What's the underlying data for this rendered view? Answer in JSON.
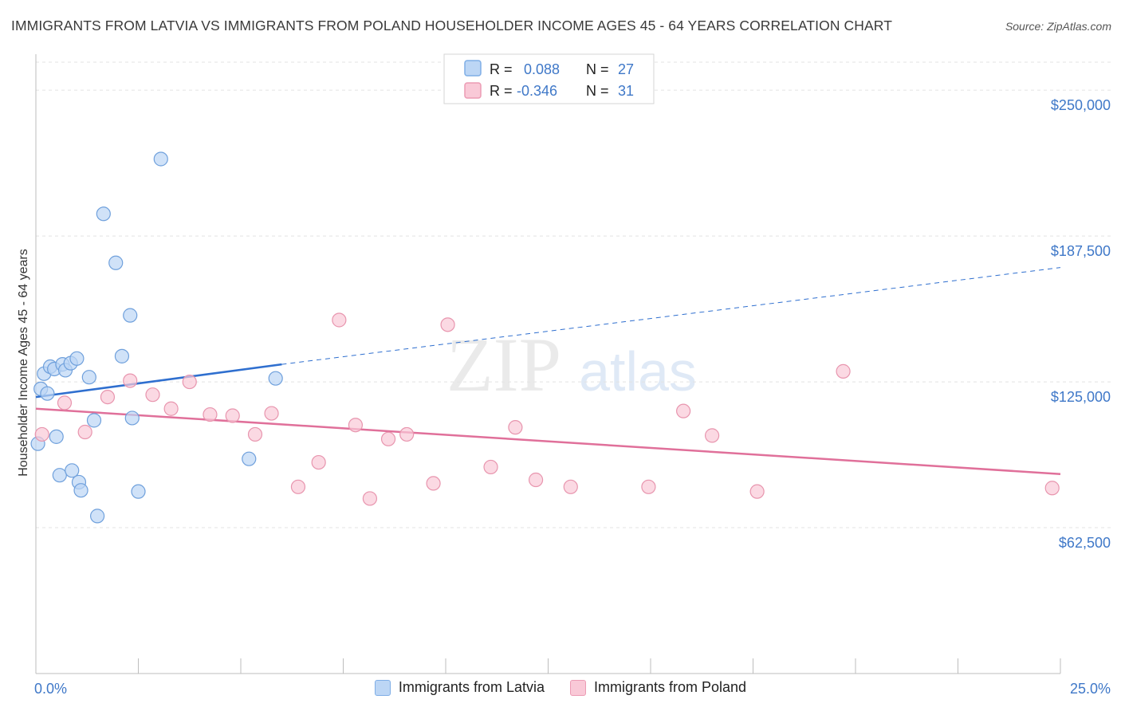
{
  "header": {
    "title": "IMMIGRANTS FROM LATVIA VS IMMIGRANTS FROM POLAND HOUSEHOLDER INCOME AGES 45 - 64 YEARS CORRELATION CHART",
    "source": "Source: ZipAtlas.com"
  },
  "watermark": {
    "zip": "ZIP",
    "atlas": "atlas"
  },
  "legend": {
    "r_label": "R =",
    "n_label": "N =",
    "latvia_r": "0.088",
    "latvia_n": "27",
    "poland_r": "-0.346",
    "poland_n": "31"
  },
  "colors": {
    "latvia_fill": "#bcd6f5",
    "latvia_stroke": "#6fa0dc",
    "latvia_line": "#2f6fcf",
    "poland_fill": "#f9c9d7",
    "poland_stroke": "#e895ae",
    "poland_line": "#e0709a",
    "axis_text": "#3f78c8",
    "grid": "#e3e3e3"
  },
  "chart_data": {
    "type": "scatter",
    "title": "IMMIGRANTS FROM LATVIA VS IMMIGRANTS FROM POLAND HOUSEHOLDER INCOME AGES 45 - 64 YEARS CORRELATION CHART",
    "xlabel": "",
    "ylabel": "Householder Income Ages 45 - 64 years",
    "xlim": [
      0,
      25
    ],
    "ylim": [
      0,
      262000
    ],
    "x_tick_labels": [
      "0.0%",
      "25.0%"
    ],
    "y_ticks": [
      62500,
      125000,
      187500,
      250000
    ],
    "y_tick_labels": [
      "$62,500",
      "$125,000",
      "$187,500",
      "$250,000"
    ],
    "grid": true,
    "legend_position": "top-center",
    "series": [
      {
        "name": "Immigrants from Latvia",
        "r": 0.088,
        "n": 27,
        "trend": {
          "x": [
            0,
            6.0
          ],
          "y": [
            118500,
            132500
          ],
          "dashed_to": [
            25,
            174000
          ]
        },
        "points": [
          [
            0.05,
            98500
          ],
          [
            0.12,
            122000
          ],
          [
            0.2,
            128500
          ],
          [
            0.28,
            120000
          ],
          [
            0.35,
            131500
          ],
          [
            0.45,
            130500
          ],
          [
            0.5,
            101500
          ],
          [
            0.58,
            85000
          ],
          [
            0.65,
            132500
          ],
          [
            0.72,
            130000
          ],
          [
            0.85,
            133000
          ],
          [
            0.88,
            87000
          ],
          [
            1.0,
            135000
          ],
          [
            1.05,
            82000
          ],
          [
            1.1,
            78500
          ],
          [
            1.3,
            127000
          ],
          [
            1.42,
            108500
          ],
          [
            1.5,
            67500
          ],
          [
            1.65,
            197000
          ],
          [
            1.95,
            176000
          ],
          [
            2.1,
            136000
          ],
          [
            2.3,
            153500
          ],
          [
            2.35,
            109500
          ],
          [
            2.5,
            78000
          ],
          [
            3.05,
            220500
          ],
          [
            5.2,
            92000
          ],
          [
            5.85,
            126500
          ]
        ]
      },
      {
        "name": "Immigrants from Poland",
        "r": -0.346,
        "n": 31,
        "trend": {
          "x": [
            0,
            25
          ],
          "y": [
            113500,
            85500
          ]
        },
        "points": [
          [
            0.15,
            102500
          ],
          [
            0.7,
            116000
          ],
          [
            1.2,
            103500
          ],
          [
            1.75,
            118500
          ],
          [
            2.3,
            125500
          ],
          [
            2.85,
            119500
          ],
          [
            3.3,
            113500
          ],
          [
            3.75,
            125000
          ],
          [
            4.25,
            111000
          ],
          [
            4.8,
            110500
          ],
          [
            5.35,
            102500
          ],
          [
            5.75,
            111500
          ],
          [
            6.4,
            80000
          ],
          [
            6.9,
            90500
          ],
          [
            7.4,
            151500
          ],
          [
            7.8,
            106500
          ],
          [
            8.15,
            75000
          ],
          [
            8.6,
            100500
          ],
          [
            9.05,
            102500
          ],
          [
            9.7,
            81500
          ],
          [
            10.05,
            149500
          ],
          [
            11.1,
            88500
          ],
          [
            11.7,
            105500
          ],
          [
            12.2,
            83000
          ],
          [
            13.05,
            80000
          ],
          [
            14.95,
            80000
          ],
          [
            15.8,
            112500
          ],
          [
            16.5,
            102000
          ],
          [
            17.6,
            78000
          ],
          [
            19.7,
            129500
          ],
          [
            24.8,
            79500
          ]
        ]
      }
    ]
  },
  "bottom_legend": {
    "latvia": "Immigrants from Latvia",
    "poland": "Immigrants from Poland"
  }
}
